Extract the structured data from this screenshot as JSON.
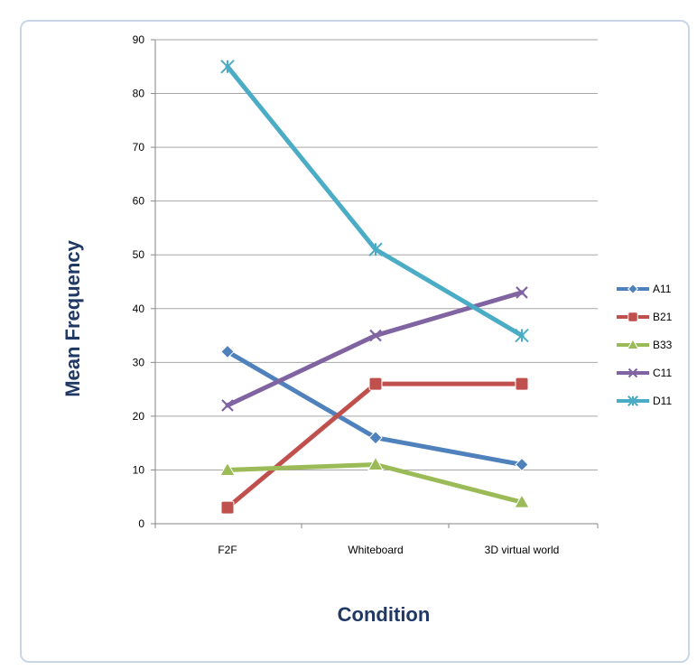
{
  "chart_data": {
    "type": "line",
    "categories": [
      "F2F",
      "Whiteboard",
      "3D virtual world"
    ],
    "xlabel": "Condition",
    "ylabel": "Mean Frequency",
    "ylim": [
      0,
      90
    ],
    "yticks": [
      0,
      10,
      20,
      30,
      40,
      50,
      60,
      70,
      80,
      90
    ],
    "grid": true,
    "legend_position": "right",
    "series": [
      {
        "name": "A11",
        "values": [
          32,
          16,
          11
        ],
        "color": "#4f81bd",
        "marker": "diamond"
      },
      {
        "name": "B21",
        "values": [
          3,
          26,
          26
        ],
        "color": "#c0504d",
        "marker": "square"
      },
      {
        "name": "B33",
        "values": [
          10,
          11,
          4
        ],
        "color": "#9bbb59",
        "marker": "triangle"
      },
      {
        "name": "C11",
        "values": [
          22,
          35,
          43
        ],
        "color": "#8064a2",
        "marker": "x"
      },
      {
        "name": "D11",
        "values": [
          85,
          51,
          35
        ],
        "color": "#4bacc6",
        "marker": "star"
      }
    ]
  }
}
